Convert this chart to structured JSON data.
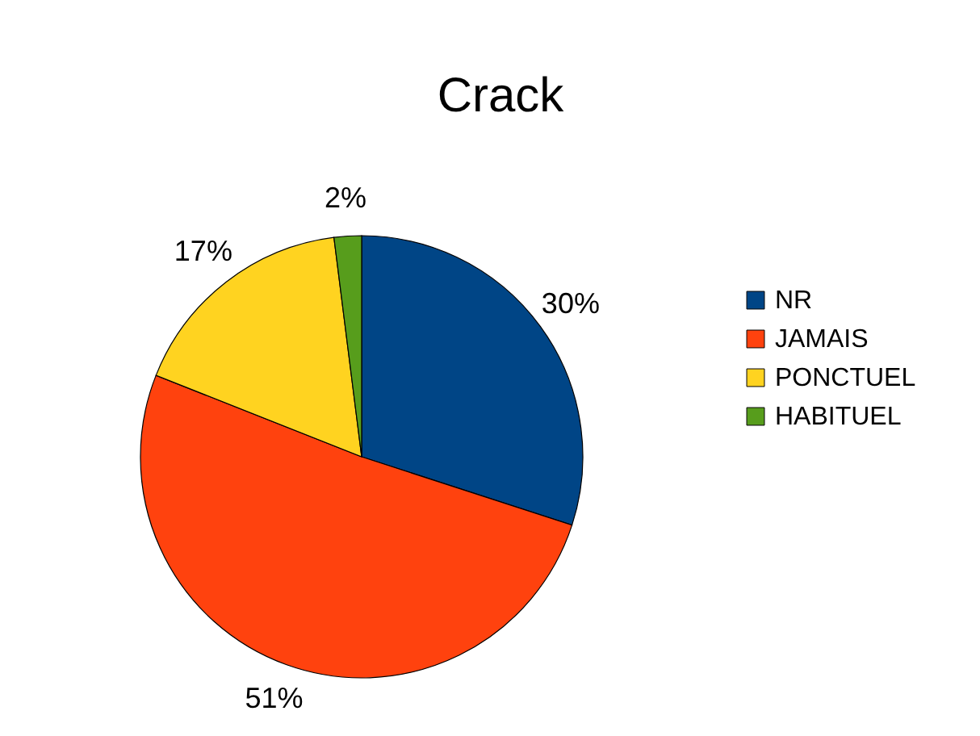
{
  "chart_data": {
    "type": "pie",
    "title": "Crack",
    "categories": [
      "NR",
      "JAMAIS",
      "PONCTUEL",
      "HABITUEL"
    ],
    "values": [
      30,
      51,
      17,
      2
    ],
    "colors": [
      "#004586",
      "#ff420e",
      "#ffd320",
      "#579d1c"
    ],
    "value_labels": [
      "30%",
      "51%",
      "17%",
      "2%"
    ],
    "legend": "right"
  }
}
